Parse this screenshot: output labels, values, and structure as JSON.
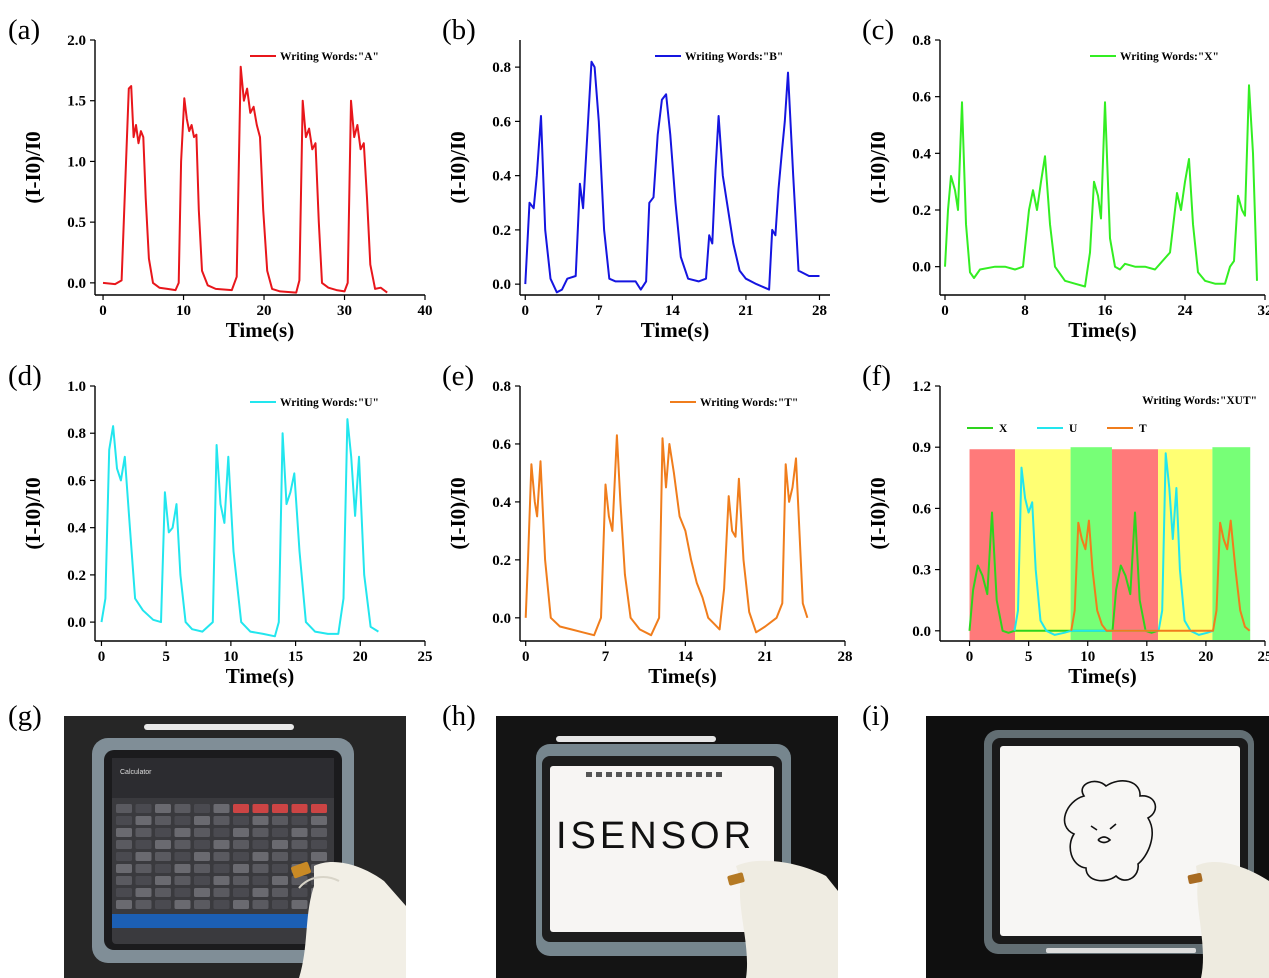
{
  "panel_labels": [
    "(a)",
    "(b)",
    "(c)",
    "(d)",
    "(e)",
    "(f)",
    "(g)",
    "(h)",
    "(i)"
  ],
  "chart_data": [
    {
      "type": "line",
      "panel": "(a)",
      "xlabel": "Time(s)",
      "ylabel": "(I-I0)/I0",
      "xlim": [
        -1,
        40
      ],
      "ylim": [
        -0.1,
        2.0
      ],
      "xticks": [
        0,
        10,
        20,
        30,
        40
      ],
      "xtick_labels": [
        "0",
        "10",
        "20",
        "30",
        "40"
      ],
      "yticks": [
        0,
        0.5,
        1.0,
        1.5,
        2.0
      ],
      "ytick_labels": [
        "0.0",
        "0.5",
        "1.0",
        "1.5",
        "2.0"
      ],
      "legend": "top-right",
      "series": [
        {
          "name": "Writing Words:\"A\"",
          "color": "#e8161b",
          "x": [
            0,
            1.5,
            2.3,
            2.8,
            3.2,
            3.5,
            3.8,
            4.1,
            4.4,
            4.7,
            5.0,
            5.3,
            5.7,
            6.2,
            7,
            8,
            9,
            9.4,
            9.7,
            10.1,
            10.4,
            10.7,
            11,
            11.3,
            11.6,
            11.9,
            12.3,
            13,
            14,
            16,
            16.6,
            17.1,
            17.5,
            17.9,
            18.3,
            18.7,
            19.1,
            19.5,
            19.9,
            20.4,
            21,
            22,
            24,
            24.4,
            24.8,
            25.2,
            25.6,
            26,
            26.4,
            26.8,
            27.2,
            28,
            29,
            30,
            30.4,
            30.8,
            31.2,
            31.6,
            32,
            32.4,
            32.8,
            33.2,
            33.8,
            34.5,
            35.3
          ],
          "y": [
            0.0,
            -0.01,
            0.02,
            0.9,
            1.6,
            1.62,
            1.2,
            1.3,
            1.15,
            1.25,
            1.2,
            0.7,
            0.2,
            0.0,
            -0.04,
            -0.05,
            -0.06,
            0.0,
            1.0,
            1.52,
            1.35,
            1.25,
            1.3,
            1.2,
            1.22,
            0.6,
            0.1,
            -0.02,
            -0.05,
            -0.06,
            0.05,
            1.78,
            1.5,
            1.6,
            1.4,
            1.45,
            1.3,
            1.2,
            0.6,
            0.1,
            -0.05,
            -0.07,
            -0.08,
            0.02,
            1.5,
            1.2,
            1.27,
            1.1,
            1.15,
            0.5,
            0.0,
            -0.04,
            -0.06,
            -0.07,
            0.0,
            1.5,
            1.2,
            1.3,
            1.1,
            1.15,
            0.7,
            0.15,
            -0.05,
            -0.04,
            -0.08
          ]
        }
      ]
    },
    {
      "type": "line",
      "panel": "(b)",
      "xlabel": "Time(s)",
      "ylabel": "(I-I0)/I0",
      "xlim": [
        -0.5,
        29
      ],
      "ylim": [
        -0.04,
        0.9
      ],
      "xticks": [
        0,
        7,
        14,
        21,
        28
      ],
      "xtick_labels": [
        "0",
        "7",
        "14",
        "21",
        "28"
      ],
      "yticks": [
        0,
        0.2,
        0.4,
        0.6,
        0.8
      ],
      "ytick_labels": [
        "0.0",
        "0.2",
        "0.4",
        "0.6",
        "0.8"
      ],
      "legend": "top-right",
      "series": [
        {
          "name": "Writing Words:\"B\"",
          "color": "#1515e0",
          "x": [
            0,
            0.4,
            0.8,
            1.1,
            1.5,
            1.9,
            2.4,
            3,
            3.5,
            4,
            4.8,
            5.2,
            5.5,
            5.9,
            6.3,
            6.6,
            7,
            7.5,
            8,
            8.6,
            9.5,
            10.5,
            11,
            11.5,
            11.8,
            12.2,
            12.6,
            13,
            13.4,
            13.8,
            14.3,
            14.8,
            15.5,
            16.5,
            17.2,
            17.5,
            17.8,
            18.1,
            18.4,
            18.8,
            19.2,
            19.8,
            20.4,
            21,
            22,
            23.2,
            23.5,
            23.8,
            24.1,
            24.4,
            24.7,
            25,
            25.5,
            26,
            27,
            28
          ],
          "y": [
            0.0,
            0.3,
            0.28,
            0.4,
            0.62,
            0.2,
            0.02,
            -0.03,
            -0.02,
            0.02,
            0.03,
            0.37,
            0.28,
            0.55,
            0.82,
            0.8,
            0.6,
            0.2,
            0.02,
            0.01,
            0.01,
            0.01,
            -0.02,
            0.01,
            0.3,
            0.32,
            0.55,
            0.68,
            0.7,
            0.55,
            0.3,
            0.1,
            0.02,
            0.01,
            0.02,
            0.18,
            0.15,
            0.42,
            0.62,
            0.4,
            0.3,
            0.15,
            0.05,
            0.02,
            0.0,
            -0.02,
            0.2,
            0.18,
            0.35,
            0.48,
            0.6,
            0.78,
            0.4,
            0.05,
            0.03,
            0.03
          ]
        }
      ]
    },
    {
      "type": "line",
      "panel": "(c)",
      "xlabel": "Time(s)",
      "ylabel": "(I-I0)/I0",
      "xlim": [
        -0.5,
        32
      ],
      "ylim": [
        -0.1,
        0.8
      ],
      "xticks": [
        0,
        8,
        16,
        24,
        32
      ],
      "xtick_labels": [
        "0",
        "8",
        "16",
        "24",
        "32"
      ],
      "yticks": [
        0,
        0.2,
        0.4,
        0.6,
        0.8
      ],
      "ytick_labels": [
        "0.0",
        "0.2",
        "0.4",
        "0.6",
        "0.8"
      ],
      "legend": "top-right",
      "series": [
        {
          "name": "Writing Words:\"X\"",
          "color": "#33ee22",
          "x": [
            0,
            0.3,
            0.6,
            1.0,
            1.3,
            1.7,
            2.1,
            2.5,
            2.9,
            3.5,
            5,
            6,
            7,
            7.8,
            8.4,
            8.8,
            9.2,
            9.6,
            10,
            10.5,
            11,
            12,
            13,
            14,
            14.5,
            14.9,
            15.3,
            15.6,
            16,
            16.5,
            17,
            17.5,
            18,
            19,
            20,
            21,
            22.5,
            23.2,
            23.6,
            24,
            24.4,
            24.8,
            25.3,
            26,
            27,
            28,
            28.5,
            28.9,
            29.3,
            29.7,
            30,
            30.4,
            30.8,
            31.2
          ],
          "y": [
            0.0,
            0.2,
            0.32,
            0.27,
            0.2,
            0.58,
            0.15,
            -0.02,
            -0.04,
            -0.01,
            0.0,
            0.0,
            -0.01,
            0.0,
            0.2,
            0.27,
            0.2,
            0.3,
            0.39,
            0.15,
            0.0,
            -0.05,
            -0.06,
            -0.07,
            0.05,
            0.3,
            0.25,
            0.17,
            0.58,
            0.1,
            0.0,
            -0.01,
            0.01,
            0.0,
            0.0,
            -0.01,
            0.05,
            0.26,
            0.2,
            0.3,
            0.38,
            0.15,
            -0.02,
            -0.05,
            -0.06,
            -0.06,
            0.0,
            0.02,
            0.25,
            0.2,
            0.18,
            0.64,
            0.4,
            -0.05
          ]
        }
      ]
    },
    {
      "type": "line",
      "panel": "(d)",
      "xlabel": "Time(s)",
      "ylabel": "(I-I0)/I0",
      "xlim": [
        -0.5,
        25
      ],
      "ylim": [
        -0.08,
        1.0
      ],
      "xticks": [
        0,
        5,
        10,
        15,
        20,
        25
      ],
      "xtick_labels": [
        "0",
        "5",
        "10",
        "15",
        "20",
        "25"
      ],
      "yticks": [
        0,
        0.2,
        0.4,
        0.6,
        0.8,
        1.0
      ],
      "ytick_labels": [
        "0.0",
        "0.2",
        "0.4",
        "0.6",
        "0.8",
        "1.0"
      ],
      "legend": "top-right",
      "series": [
        {
          "name": "Writing Words:\"U\"",
          "color": "#22e6ee",
          "x": [
            0,
            0.3,
            0.6,
            0.9,
            1.2,
            1.5,
            1.8,
            2.2,
            2.6,
            3.2,
            4,
            4.6,
            4.9,
            5.2,
            5.5,
            5.8,
            6.1,
            6.5,
            7,
            7.8,
            8.6,
            8.9,
            9.2,
            9.5,
            9.8,
            10.2,
            10.8,
            11.5,
            12.5,
            13.4,
            13.7,
            14,
            14.3,
            14.6,
            14.9,
            15.3,
            15.8,
            16.5,
            17.5,
            18.3,
            18.7,
            19,
            19.3,
            19.6,
            19.9,
            20.3,
            20.8,
            21.4
          ],
          "y": [
            0.0,
            0.1,
            0.73,
            0.83,
            0.65,
            0.6,
            0.7,
            0.4,
            0.1,
            0.05,
            0.01,
            0.0,
            0.55,
            0.38,
            0.4,
            0.5,
            0.2,
            0.0,
            -0.03,
            -0.04,
            0.0,
            0.75,
            0.5,
            0.42,
            0.7,
            0.3,
            0.0,
            -0.04,
            -0.05,
            -0.06,
            0.0,
            0.8,
            0.5,
            0.55,
            0.63,
            0.3,
            0.0,
            -0.04,
            -0.05,
            -0.05,
            0.1,
            0.86,
            0.7,
            0.45,
            0.7,
            0.2,
            -0.02,
            -0.04
          ]
        }
      ]
    },
    {
      "type": "line",
      "panel": "(e)",
      "xlabel": "Time(s)",
      "ylabel": "(I-I0)/I0",
      "xlim": [
        -0.5,
        28
      ],
      "ylim": [
        -0.08,
        0.8
      ],
      "xticks": [
        0,
        7,
        14,
        21,
        28
      ],
      "xtick_labels": [
        "0",
        "7",
        "14",
        "21",
        "28"
      ],
      "yticks": [
        0,
        0.2,
        0.4,
        0.6,
        0.8
      ],
      "ytick_labels": [
        "0.0",
        "0.2",
        "0.4",
        "0.6",
        "0.8"
      ],
      "legend": "top-right",
      "series": [
        {
          "name": "Writing Words:\"T\"",
          "color": "#f07d1c",
          "x": [
            0,
            0.2,
            0.5,
            0.8,
            1.0,
            1.3,
            1.7,
            2.2,
            3,
            4,
            5,
            6,
            6.6,
            7.0,
            7.3,
            7.6,
            8.0,
            8.3,
            8.7,
            9.2,
            10,
            11,
            11.7,
            12.0,
            12.3,
            12.6,
            13.0,
            13.5,
            14,
            14.5,
            15,
            15.5,
            16,
            16.5,
            17,
            17.4,
            17.8,
            18.1,
            18.4,
            18.7,
            19.1,
            19.6,
            20.2,
            21,
            22,
            22.5,
            22.8,
            23.1,
            23.4,
            23.7,
            24,
            24.3,
            24.7
          ],
          "y": [
            0.0,
            0.2,
            0.53,
            0.4,
            0.35,
            0.54,
            0.2,
            0.0,
            -0.03,
            -0.04,
            -0.05,
            -0.06,
            0.0,
            0.46,
            0.35,
            0.3,
            0.63,
            0.4,
            0.15,
            0.0,
            -0.04,
            -0.06,
            0.0,
            0.62,
            0.45,
            0.6,
            0.5,
            0.35,
            0.3,
            0.2,
            0.12,
            0.07,
            0.0,
            -0.02,
            -0.04,
            0.1,
            0.42,
            0.3,
            0.28,
            0.48,
            0.2,
            0.02,
            -0.05,
            -0.03,
            0.0,
            0.05,
            0.53,
            0.4,
            0.45,
            0.55,
            0.3,
            0.05,
            0.0
          ]
        }
      ]
    },
    {
      "type": "line",
      "panel": "(f)",
      "xlabel": "Time(s)",
      "ylabel": "(I-I0)/I0",
      "xlim": [
        -2.5,
        25
      ],
      "ylim": [
        -0.05,
        1.2
      ],
      "xticks": [
        0,
        5,
        10,
        15,
        20,
        25
      ],
      "xtick_labels": [
        "0",
        "5",
        "10",
        "15",
        "20",
        "25"
      ],
      "yticks": [
        0,
        0.3,
        0.6,
        0.9,
        1.2
      ],
      "ytick_labels": [
        "0.0",
        "0.3",
        "0.6",
        "0.9",
        "1.2"
      ],
      "legend": "top-left",
      "annotation": "Writing Words:\"XUT\"",
      "bands": [
        {
          "x0": 0,
          "x1": 3.85,
          "color": "#ff7a7a",
          "top": 0.89
        },
        {
          "x0": 3.85,
          "x1": 8.55,
          "color": "#ffff73",
          "top": 0.89
        },
        {
          "x0": 8.55,
          "x1": 12.05,
          "color": "#77ff77",
          "top": 0.9
        },
        {
          "x0": 12.05,
          "x1": 15.95,
          "color": "#ff7a7a",
          "top": 0.89
        },
        {
          "x0": 15.95,
          "x1": 20.55,
          "color": "#ffff73",
          "top": 0.89
        },
        {
          "x0": 20.55,
          "x1": 23.75,
          "color": "#77ff77",
          "top": 0.9
        }
      ],
      "series": [
        {
          "name": "X",
          "color": "#2ed41e",
          "x": [
            0,
            0.3,
            0.7,
            1.1,
            1.5,
            1.9,
            2.3,
            2.8,
            3.3,
            3.8,
            12.1,
            12.4,
            12.8,
            13.2,
            13.6,
            14,
            14.4,
            14.9,
            15.4,
            15.9
          ],
          "y": [
            0.0,
            0.2,
            0.32,
            0.27,
            0.18,
            0.58,
            0.15,
            0.0,
            -0.01,
            0.0,
            0.0,
            0.2,
            0.32,
            0.27,
            0.18,
            0.58,
            0.15,
            0.0,
            -0.01,
            0.0
          ]
        },
        {
          "name": "U",
          "color": "#22e6ee",
          "x": [
            3.8,
            4.1,
            4.4,
            4.7,
            5.0,
            5.3,
            5.6,
            6.0,
            6.5,
            7.2,
            8.0,
            8.6,
            16,
            16.3,
            16.6,
            16.9,
            17.2,
            17.5,
            17.8,
            18.2,
            18.7,
            19.4,
            20.1,
            20.6
          ],
          "y": [
            0.0,
            0.1,
            0.8,
            0.65,
            0.58,
            0.63,
            0.3,
            0.05,
            0.0,
            -0.02,
            -0.01,
            0.0,
            0.0,
            0.1,
            0.87,
            0.7,
            0.45,
            0.7,
            0.3,
            0.05,
            0.0,
            -0.02,
            -0.01,
            0.0
          ]
        },
        {
          "name": "T",
          "color": "#f07d1c",
          "x": [
            8.6,
            8.9,
            9.2,
            9.5,
            9.8,
            10.1,
            10.4,
            10.8,
            11.2,
            11.6,
            12.1,
            20.6,
            20.9,
            21.2,
            21.5,
            21.8,
            22.1,
            22.5,
            22.9,
            23.3,
            23.7
          ],
          "y": [
            0.0,
            0.1,
            0.53,
            0.45,
            0.4,
            0.54,
            0.3,
            0.1,
            0.03,
            0.0,
            0.0,
            0.0,
            0.1,
            0.53,
            0.45,
            0.4,
            0.54,
            0.3,
            0.1,
            0.02,
            0.0
          ]
        }
      ]
    }
  ],
  "photos": {
    "g": {
      "screen_title": "Calculator"
    },
    "h": {
      "screen_text": "ISENSOR"
    },
    "i": {}
  }
}
